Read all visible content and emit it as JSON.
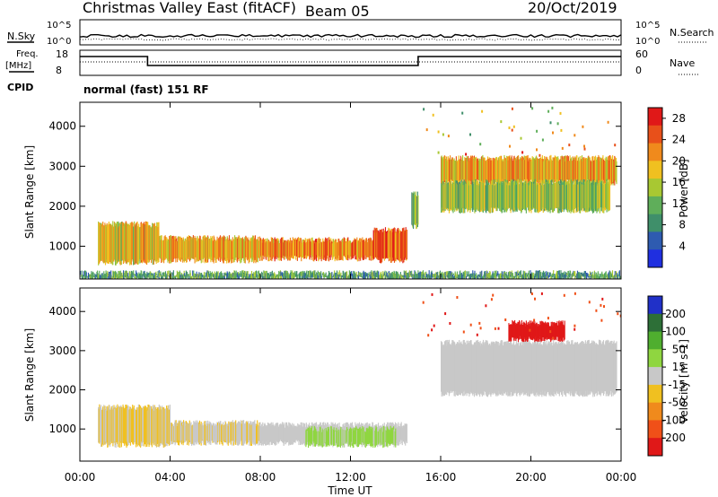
{
  "header": {
    "title": "Christmas Valley East (fitACF)",
    "beam": "Beam 05",
    "date": "20/Oct/2019"
  },
  "labels": {
    "nsky": "N.Sky",
    "nsearch": "N.Search",
    "freq_line1": "Freq.",
    "freq_line2": "[MHz]",
    "nave": "Nave",
    "cpid": "CPID",
    "cpid_value": "normal (fast) 151 RF"
  },
  "noise_axis": {
    "left_ticks": [
      "10^5",
      "10^0"
    ],
    "right_ticks": [
      "10^5",
      "10^0"
    ]
  },
  "freq_axis": {
    "left_ticks": [
      "18",
      "8"
    ],
    "right_ticks": [
      "60",
      "0"
    ]
  },
  "colors": {
    "power_scale": [
      "#1f2fe0",
      "#2e5bb0",
      "#3f8f6a",
      "#5fae5a",
      "#a8c832",
      "#f0c020",
      "#f08a1c",
      "#e8501a",
      "#e01818"
    ],
    "velocity_scale": [
      "#e01818",
      "#f05018",
      "#f08a1c",
      "#f0c020",
      "#c8c8c8",
      "#8fd640",
      "#4fae2f",
      "#2d6f37",
      "#2030c8"
    ],
    "ground_scatter": "#bdbdbd"
  },
  "chart_data": [
    {
      "type": "heatmap",
      "title": "Power",
      "ylabel": "Slant Range [km]",
      "xlabel": "Time UT",
      "x_ticks": [
        "00:00",
        "04:00",
        "08:00",
        "12:00",
        "16:00",
        "20:00",
        "00:00"
      ],
      "xlim_hours": [
        0,
        24
      ],
      "ylim": [
        180,
        4600
      ],
      "y_ticks": [
        1000,
        2000,
        3000,
        4000
      ],
      "colorbar": {
        "label": "Power [dB]",
        "ticks": [
          4,
          8,
          12,
          16,
          20,
          24,
          28
        ],
        "range": [
          0,
          30
        ]
      },
      "regions": [
        {
          "t0": 0.8,
          "t1": 3.5,
          "r0": 600,
          "r1": 1550,
          "level": 18
        },
        {
          "t0": 3.5,
          "t1": 8.0,
          "r0": 650,
          "r1": 1200,
          "level": 20
        },
        {
          "t0": 8.0,
          "t1": 13.0,
          "r0": 700,
          "r1": 1150,
          "level": 22
        },
        {
          "t0": 13.0,
          "t1": 14.5,
          "r0": 650,
          "r1": 1400,
          "level": 24
        },
        {
          "t0": 14.7,
          "t1": 15.0,
          "r0": 1500,
          "r1": 2300,
          "level": 12
        },
        {
          "t0": 16.0,
          "t1": 23.8,
          "r0": 2600,
          "r1": 3200,
          "level": 20
        },
        {
          "t0": 16.0,
          "t1": 23.5,
          "r0": 1900,
          "r1": 2600,
          "level": 14
        },
        {
          "t0": 0.0,
          "t1": 24.0,
          "r0": 200,
          "r1": 320,
          "level": 10
        }
      ]
    },
    {
      "type": "heatmap",
      "title": "Velocity",
      "ylabel": "Slant Range [km]",
      "xlabel": "Time UT",
      "x_ticks": [
        "00:00",
        "04:00",
        "08:00",
        "12:00",
        "16:00",
        "20:00",
        "00:00"
      ],
      "xlim_hours": [
        0,
        24
      ],
      "ylim": [
        180,
        4600
      ],
      "y_ticks": [
        1000,
        2000,
        3000,
        4000
      ],
      "colorbar": {
        "label": "Velocity [m s-1]",
        "ticks": [
          200,
          100,
          50,
          15,
          -15,
          -50,
          -100,
          -200
        ],
        "range": [
          -250,
          250
        ]
      },
      "regions": [
        {
          "t0": 0.8,
          "t1": 4.0,
          "r0": 600,
          "r1": 1550,
          "level": 30
        },
        {
          "t0": 4.0,
          "t1": 8.0,
          "r0": 650,
          "r1": 1150,
          "level": 25
        },
        {
          "t0": 8.0,
          "t1": 14.5,
          "r0": 650,
          "r1": 1100,
          "level": 0
        },
        {
          "t0": 10.0,
          "t1": 14.0,
          "r0": 600,
          "r1": 1000,
          "level": -40
        },
        {
          "t0": 16.0,
          "t1": 23.8,
          "r0": 1900,
          "r1": 3200,
          "level": 0
        },
        {
          "t0": 19.0,
          "t1": 21.5,
          "r0": 3300,
          "r1": 3700,
          "level": 220
        }
      ]
    }
  ]
}
